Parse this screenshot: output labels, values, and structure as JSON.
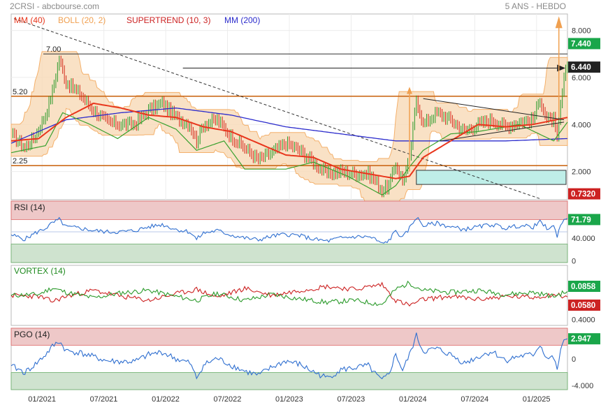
{
  "header": {
    "left": "2CRSI - abcbourse.com",
    "right": "5 ANS - HEBDO"
  },
  "colors": {
    "mm40": "#e8361c",
    "boll": "#f4b06b",
    "boll_fill": "#f8d9b6",
    "supertrend": "#3aa12f",
    "mm200": "#2b2bcc",
    "level": "#cc6a1a",
    "rsi": "#2f6fd0",
    "vortex_plus": "#2a9a2a",
    "vortex_minus": "#cc2222",
    "pgo": "#2f6fd0",
    "badge": "#1aa64a",
    "badge_red": "#cc2222"
  },
  "chart_data": [
    {
      "type": "line",
      "panel": "price",
      "legend": [
        {
          "label": "MM (40)",
          "color": "#e8361c"
        },
        {
          "label": "BOLL (20, 2)",
          "color": "#f0a050"
        },
        {
          "label": "SUPERTREND (10, 3)",
          "color": "#cc2222"
        },
        {
          "label": "MM (200)",
          "color": "#2b2bcc"
        }
      ],
      "x_ticks": [
        "01/2021",
        "07/2021",
        "01/2022",
        "07/2022",
        "01/2023",
        "07/2023",
        "01/2024",
        "07/2024",
        "01/2025"
      ],
      "y_ticks": [
        "8.000",
        "6.000",
        "4.000",
        "2.000"
      ],
      "badges": [
        "7.440",
        "6.440",
        "0.7320"
      ],
      "levels": [
        {
          "label": "7.00",
          "value": 7.0
        },
        {
          "label": "5.20",
          "value": 5.2
        },
        {
          "label": "2.25",
          "value": 2.25
        }
      ],
      "ylim": [
        0.8,
        8.7
      ],
      "close_points": [
        [
          0,
          3.6
        ],
        [
          8,
          3.0
        ],
        [
          14,
          3.5
        ],
        [
          20,
          4.4
        ],
        [
          24,
          5.4
        ],
        [
          28,
          6.8
        ],
        [
          32,
          5.8
        ],
        [
          40,
          5.3
        ],
        [
          48,
          4.6
        ],
        [
          56,
          4.1
        ],
        [
          64,
          4.0
        ],
        [
          72,
          4.0
        ],
        [
          80,
          4.6
        ],
        [
          88,
          4.9
        ],
        [
          96,
          4.3
        ],
        [
          104,
          4.0
        ],
        [
          108,
          3.3
        ],
        [
          112,
          4.0
        ],
        [
          120,
          4.2
        ],
        [
          128,
          3.5
        ],
        [
          136,
          3.0
        ],
        [
          144,
          2.5
        ],
        [
          152,
          2.8
        ],
        [
          160,
          3.2
        ],
        [
          168,
          2.9
        ],
        [
          176,
          2.4
        ],
        [
          184,
          1.9
        ],
        [
          192,
          2.0
        ],
        [
          200,
          1.9
        ],
        [
          208,
          1.9
        ],
        [
          212,
          1.6
        ],
        [
          216,
          1.2
        ],
        [
          220,
          1.4
        ],
        [
          224,
          2.3
        ],
        [
          228,
          1.6
        ],
        [
          232,
          2.5
        ],
        [
          236,
          5.1
        ],
        [
          240,
          4.0
        ],
        [
          248,
          4.5
        ],
        [
          256,
          4.2
        ],
        [
          264,
          3.7
        ],
        [
          272,
          4.0
        ],
        [
          280,
          4.2
        ],
        [
          288,
          3.9
        ],
        [
          296,
          4.1
        ],
        [
          304,
          4.2
        ],
        [
          308,
          5.1
        ],
        [
          312,
          4.2
        ],
        [
          316,
          4.2
        ],
        [
          318,
          3.3
        ],
        [
          320,
          4.8
        ],
        [
          322,
          5.9
        ],
        [
          324,
          6.5
        ]
      ],
      "mm40_points": [
        [
          0,
          3.3
        ],
        [
          16,
          3.4
        ],
        [
          32,
          4.3
        ],
        [
          48,
          4.9
        ],
        [
          64,
          4.7
        ],
        [
          80,
          4.4
        ],
        [
          96,
          4.3
        ],
        [
          112,
          3.9
        ],
        [
          128,
          3.7
        ],
        [
          144,
          3.2
        ],
        [
          160,
          2.7
        ],
        [
          176,
          2.6
        ],
        [
          192,
          2.1
        ],
        [
          208,
          1.9
        ],
        [
          224,
          1.7
        ],
        [
          232,
          1.8
        ],
        [
          240,
          2.6
        ],
        [
          256,
          3.3
        ],
        [
          272,
          4.0
        ],
        [
          288,
          3.9
        ],
        [
          304,
          4.0
        ],
        [
          324,
          4.3
        ]
      ],
      "mm200_points": [
        [
          0,
          3.2
        ],
        [
          32,
          4.2
        ],
        [
          64,
          4.5
        ],
        [
          96,
          4.7
        ],
        [
          128,
          4.4
        ],
        [
          160,
          3.9
        ],
        [
          192,
          3.6
        ],
        [
          224,
          3.3
        ],
        [
          256,
          3.3
        ],
        [
          288,
          3.3
        ],
        [
          324,
          3.4
        ]
      ],
      "supertrend_points": [
        [
          0,
          2.8
        ],
        [
          20,
          3.1
        ],
        [
          30,
          4.5
        ],
        [
          46,
          4.0
        ],
        [
          62,
          3.4
        ],
        [
          80,
          4.3
        ],
        [
          96,
          3.8
        ],
        [
          108,
          2.9
        ],
        [
          124,
          3.3
        ],
        [
          136,
          2.1
        ],
        [
          160,
          2.1
        ],
        [
          176,
          2.4
        ],
        [
          196,
          1.8
        ],
        [
          216,
          1.0
        ],
        [
          224,
          1.4
        ],
        [
          232,
          2.2
        ],
        [
          240,
          2.9
        ],
        [
          256,
          3.6
        ],
        [
          272,
          3.7
        ],
        [
          296,
          4.0
        ],
        [
          316,
          3.3
        ],
        [
          324,
          4.1
        ]
      ],
      "rsi_points": [
        [
          0,
          45
        ],
        [
          8,
          38
        ],
        [
          14,
          48
        ],
        [
          20,
          56
        ],
        [
          24,
          64
        ],
        [
          28,
          70
        ],
        [
          32,
          58
        ],
        [
          40,
          56
        ],
        [
          48,
          52
        ],
        [
          56,
          50
        ],
        [
          64,
          50
        ],
        [
          72,
          52
        ],
        [
          80,
          58
        ],
        [
          88,
          62
        ],
        [
          96,
          54
        ],
        [
          104,
          50
        ],
        [
          108,
          38
        ],
        [
          112,
          48
        ],
        [
          120,
          52
        ],
        [
          128,
          45
        ],
        [
          136,
          40
        ],
        [
          144,
          37
        ],
        [
          152,
          43
        ],
        [
          160,
          46
        ],
        [
          168,
          44
        ],
        [
          176,
          38
        ],
        [
          184,
          35
        ],
        [
          192,
          40
        ],
        [
          200,
          42
        ],
        [
          208,
          42
        ],
        [
          212,
          38
        ],
        [
          216,
          30
        ],
        [
          220,
          36
        ],
        [
          224,
          52
        ],
        [
          228,
          40
        ],
        [
          232,
          56
        ],
        [
          236,
          74
        ],
        [
          240,
          60
        ],
        [
          248,
          64
        ],
        [
          256,
          58
        ],
        [
          264,
          54
        ],
        [
          272,
          58
        ],
        [
          280,
          62
        ],
        [
          288,
          56
        ],
        [
          296,
          60
        ],
        [
          304,
          58
        ],
        [
          308,
          66
        ],
        [
          312,
          56
        ],
        [
          316,
          58
        ],
        [
          318,
          44
        ],
        [
          320,
          62
        ],
        [
          322,
          68
        ],
        [
          324,
          71.79
        ]
      ],
      "vortex_plus_points": [
        [
          0,
          1.0
        ],
        [
          16,
          1.02
        ],
        [
          24,
          1.15
        ],
        [
          32,
          1.06
        ],
        [
          48,
          0.95
        ],
        [
          64,
          1.05
        ],
        [
          80,
          1.1
        ],
        [
          96,
          0.98
        ],
        [
          108,
          0.9
        ],
        [
          120,
          1.04
        ],
        [
          136,
          0.9
        ],
        [
          152,
          1.02
        ],
        [
          168,
          0.93
        ],
        [
          184,
          0.86
        ],
        [
          200,
          0.9
        ],
        [
          216,
          0.82
        ],
        [
          224,
          1.12
        ],
        [
          232,
          1.25
        ],
        [
          240,
          1.1
        ],
        [
          256,
          1.06
        ],
        [
          272,
          1.1
        ],
        [
          288,
          1.02
        ],
        [
          304,
          1.06
        ],
        [
          316,
          0.98
        ],
        [
          324,
          1.08
        ]
      ],
      "vortex_minus_points": [
        [
          0,
          1.0
        ],
        [
          16,
          0.98
        ],
        [
          24,
          0.88
        ],
        [
          32,
          0.98
        ],
        [
          48,
          1.1
        ],
        [
          64,
          0.98
        ],
        [
          80,
          0.9
        ],
        [
          96,
          1.03
        ],
        [
          108,
          1.12
        ],
        [
          120,
          0.96
        ],
        [
          136,
          1.14
        ],
        [
          152,
          1.0
        ],
        [
          168,
          1.1
        ],
        [
          184,
          1.18
        ],
        [
          200,
          1.12
        ],
        [
          216,
          1.22
        ],
        [
          224,
          0.9
        ],
        [
          232,
          0.8
        ],
        [
          240,
          0.92
        ],
        [
          256,
          0.98
        ],
        [
          272,
          0.92
        ],
        [
          288,
          0.98
        ],
        [
          304,
          0.96
        ],
        [
          316,
          1.02
        ],
        [
          324,
          0.97
        ]
      ],
      "pgo_points": [
        [
          0,
          -1.0
        ],
        [
          8,
          -2.0
        ],
        [
          14,
          -0.8
        ],
        [
          20,
          0.6
        ],
        [
          24,
          1.8
        ],
        [
          28,
          2.6
        ],
        [
          32,
          1.2
        ],
        [
          40,
          0.9
        ],
        [
          48,
          0.3
        ],
        [
          56,
          -0.3
        ],
        [
          64,
          -0.4
        ],
        [
          72,
          -0.4
        ],
        [
          80,
          0.6
        ],
        [
          88,
          1.0
        ],
        [
          96,
          0.0
        ],
        [
          104,
          -0.6
        ],
        [
          108,
          -2.8
        ],
        [
          112,
          -0.9
        ],
        [
          120,
          0.1
        ],
        [
          128,
          -0.9
        ],
        [
          136,
          -1.8
        ],
        [
          144,
          -2.4
        ],
        [
          152,
          -1.2
        ],
        [
          160,
          -0.3
        ],
        [
          168,
          -0.8
        ],
        [
          176,
          -1.9
        ],
        [
          184,
          -2.8
        ],
        [
          192,
          -1.6
        ],
        [
          200,
          -1.3
        ],
        [
          208,
          -1.0
        ],
        [
          212,
          -2.2
        ],
        [
          216,
          -3.2
        ],
        [
          220,
          -2.2
        ],
        [
          224,
          0.7
        ],
        [
          228,
          -1.7
        ],
        [
          232,
          0.6
        ],
        [
          236,
          3.4
        ],
        [
          240,
          1.1
        ],
        [
          248,
          1.5
        ],
        [
          256,
          0.6
        ],
        [
          264,
          -0.6
        ],
        [
          272,
          0.3
        ],
        [
          280,
          1.1
        ],
        [
          288,
          -0.2
        ],
        [
          296,
          0.4
        ],
        [
          304,
          0.6
        ],
        [
          308,
          2.1
        ],
        [
          312,
          0.1
        ],
        [
          316,
          0.2
        ],
        [
          318,
          -1.8
        ],
        [
          320,
          1.4
        ],
        [
          322,
          2.4
        ],
        [
          324,
          2.947
        ]
      ]
    },
    {
      "type": "line",
      "panel": "rsi",
      "label": "RSI (14)",
      "y_ticks": [
        "40.000",
        "0"
      ],
      "ylim": [
        0,
        100
      ],
      "bands": [
        70,
        30
      ],
      "badge": "71.79"
    },
    {
      "type": "line",
      "panel": "vortex",
      "label": "VORTEX (14)",
      "y_ticks": [
        "0.4000"
      ],
      "ylim": [
        0.4,
        1.6
      ],
      "badges": [
        "0.0858",
        "0.0580"
      ]
    },
    {
      "type": "line",
      "panel": "pgo",
      "label": "PGO (14)",
      "y_ticks": [
        "0",
        "-4.000"
      ],
      "ylim": [
        -4.5,
        4.5
      ],
      "bands": [
        2,
        -2
      ],
      "badge": "2.947"
    }
  ]
}
